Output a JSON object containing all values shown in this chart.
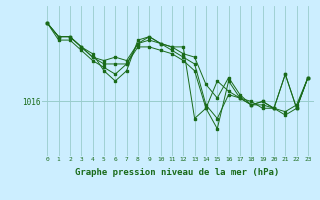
{
  "bg_color": "#cceeff",
  "grid_color": "#99cccc",
  "line_color": "#1a6b1a",
  "marker_color": "#1a6b1a",
  "xlabel": "Graphe pression niveau de la mer (hPa)",
  "xlabel_fontsize": 6.5,
  "ylabel_tick": "1016",
  "xlim": [
    -0.5,
    23.5
  ],
  "ylim_min": 1008.0,
  "ylim_max": 1030.0,
  "hline_y": 1016,
  "xticks": [
    0,
    1,
    2,
    3,
    4,
    5,
    6,
    7,
    8,
    9,
    10,
    11,
    12,
    13,
    14,
    15,
    16,
    17,
    18,
    19,
    20,
    21,
    22,
    23
  ],
  "series": [
    [
      1027.5,
      1025.5,
      1025.5,
      1024.0,
      1022.5,
      1022.0,
      1022.5,
      1022.0,
      1024.5,
      1025.0,
      1024.5,
      1024.0,
      1024.0,
      1013.5,
      1015.0,
      1019.0,
      1017.5,
      1016.5,
      1015.5,
      1016.0,
      1015.0,
      1020.0,
      1015.0,
      1019.5
    ],
    [
      1027.5,
      1025.5,
      1025.5,
      1024.0,
      1023.0,
      1020.5,
      1019.0,
      1020.5,
      1025.0,
      1025.5,
      1024.5,
      1023.5,
      1022.5,
      1021.5,
      1015.5,
      1013.5,
      1017.0,
      1016.5,
      1015.5,
      1016.0,
      1015.0,
      1020.0,
      1015.0,
      1019.5
    ],
    [
      1027.5,
      1025.0,
      1025.0,
      1023.5,
      1022.0,
      1021.0,
      1020.0,
      1021.5,
      1024.0,
      1024.0,
      1023.5,
      1023.0,
      1022.0,
      1020.5,
      1015.0,
      1012.0,
      1019.0,
      1016.5,
      1016.0,
      1015.0,
      1015.0,
      1014.5,
      1015.5,
      1019.5
    ],
    [
      1027.5,
      1025.5,
      1025.5,
      1024.0,
      1022.5,
      1021.5,
      1021.5,
      1021.5,
      1024.5,
      1025.5,
      1024.5,
      1024.0,
      1023.0,
      1022.5,
      1018.5,
      1016.5,
      1019.5,
      1017.0,
      1015.5,
      1015.5,
      1015.0,
      1014.0,
      1015.0,
      1019.5
    ]
  ]
}
